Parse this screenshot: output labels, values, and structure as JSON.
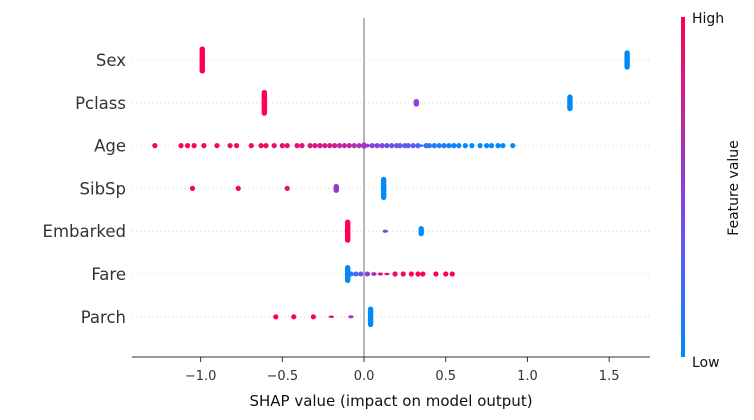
{
  "chart_data": {
    "type": "scatter",
    "subtype": "shap-beeswarm",
    "xlabel": "SHAP value (impact on model output)",
    "xlim": [
      -1.42,
      1.75
    ],
    "xticks": [
      -1.0,
      -0.5,
      0.0,
      0.5,
      1.0,
      1.5
    ],
    "xtick_labels": [
      "−1.0",
      "−0.5",
      "0.0",
      "0.5",
      "1.0",
      "1.5"
    ],
    "colorbar": {
      "high_label": "High",
      "low_label": "Low",
      "title": "Feature value",
      "high_color": "#ff0052",
      "low_color": "#008bfb"
    },
    "features": [
      {
        "name": "Sex",
        "points": [
          {
            "x": -0.99,
            "v": 1.0,
            "n": 40
          },
          {
            "x": 1.61,
            "v": 0.0,
            "n": 28
          }
        ]
      },
      {
        "name": "Pclass",
        "points": [
          {
            "x": -0.61,
            "v": 1.0,
            "n": 38
          },
          {
            "x": 0.32,
            "v": 0.5,
            "n": 10
          },
          {
            "x": 1.26,
            "v": 0.0,
            "n": 24
          }
        ]
      },
      {
        "name": "Age",
        "points": [
          {
            "x": -1.28,
            "v": 1.0,
            "n": 1
          },
          {
            "x": -1.12,
            "v": 0.98,
            "n": 1
          },
          {
            "x": -1.08,
            "v": 0.98,
            "n": 1
          },
          {
            "x": -1.04,
            "v": 0.97,
            "n": 1
          },
          {
            "x": -0.98,
            "v": 0.97,
            "n": 1
          },
          {
            "x": -0.9,
            "v": 0.96,
            "n": 1
          },
          {
            "x": -0.82,
            "v": 0.95,
            "n": 1
          },
          {
            "x": -0.78,
            "v": 0.95,
            "n": 1
          },
          {
            "x": -0.69,
            "v": 0.94,
            "n": 1
          },
          {
            "x": -0.63,
            "v": 0.93,
            "n": 1
          },
          {
            "x": -0.6,
            "v": 0.92,
            "n": 1
          },
          {
            "x": -0.55,
            "v": 0.91,
            "n": 1
          },
          {
            "x": -0.5,
            "v": 0.9,
            "n": 1
          },
          {
            "x": -0.47,
            "v": 0.88,
            "n": 1
          },
          {
            "x": -0.41,
            "v": 0.86,
            "n": 1
          },
          {
            "x": -0.38,
            "v": 0.85,
            "n": 1
          },
          {
            "x": -0.33,
            "v": 0.84,
            "n": 1
          },
          {
            "x": -0.3,
            "v": 0.82,
            "n": 1
          },
          {
            "x": -0.27,
            "v": 0.8,
            "n": 1
          },
          {
            "x": -0.24,
            "v": 0.79,
            "n": 1
          },
          {
            "x": -0.21,
            "v": 0.78,
            "n": 1
          },
          {
            "x": -0.18,
            "v": 0.76,
            "n": 1
          },
          {
            "x": -0.15,
            "v": 0.74,
            "n": 1
          },
          {
            "x": -0.12,
            "v": 0.7,
            "n": 1
          },
          {
            "x": -0.09,
            "v": 0.68,
            "n": 1
          },
          {
            "x": -0.06,
            "v": 0.65,
            "n": 1
          },
          {
            "x": -0.03,
            "v": 0.62,
            "n": 1
          },
          {
            "x": 0.0,
            "v": 0.6,
            "n": 8
          },
          {
            "x": 0.02,
            "v": 0.55,
            "n": 4
          },
          {
            "x": 0.05,
            "v": 0.52,
            "n": 1
          },
          {
            "x": 0.08,
            "v": 0.48,
            "n": 1
          },
          {
            "x": 0.11,
            "v": 0.45,
            "n": 1
          },
          {
            "x": 0.14,
            "v": 0.42,
            "n": 1
          },
          {
            "x": 0.17,
            "v": 0.4,
            "n": 1
          },
          {
            "x": 0.2,
            "v": 0.38,
            "n": 1
          },
          {
            "x": 0.22,
            "v": 0.35,
            "n": 1
          },
          {
            "x": 0.25,
            "v": 0.32,
            "n": 1
          },
          {
            "x": 0.27,
            "v": 0.3,
            "n": 1
          },
          {
            "x": 0.3,
            "v": 0.28,
            "n": 1
          },
          {
            "x": 0.33,
            "v": 0.25,
            "n": 1
          },
          {
            "x": 0.35,
            "v": 0.22,
            "n": 2
          },
          {
            "x": 0.38,
            "v": 0.18,
            "n": 1
          },
          {
            "x": 0.4,
            "v": 0.15,
            "n": 1
          },
          {
            "x": 0.43,
            "v": 0.12,
            "n": 1
          },
          {
            "x": 0.46,
            "v": 0.1,
            "n": 1
          },
          {
            "x": 0.49,
            "v": 0.08,
            "n": 1
          },
          {
            "x": 0.52,
            "v": 0.06,
            "n": 1
          },
          {
            "x": 0.55,
            "v": 0.05,
            "n": 1
          },
          {
            "x": 0.58,
            "v": 0.04,
            "n": 1
          },
          {
            "x": 0.62,
            "v": 0.03,
            "n": 1
          },
          {
            "x": 0.66,
            "v": 0.02,
            "n": 1
          },
          {
            "x": 0.71,
            "v": 0.02,
            "n": 1
          },
          {
            "x": 0.75,
            "v": 0.01,
            "n": 1
          },
          {
            "x": 0.78,
            "v": 0.01,
            "n": 1
          },
          {
            "x": 0.82,
            "v": 0.0,
            "n": 1
          },
          {
            "x": 0.85,
            "v": 0.0,
            "n": 1
          },
          {
            "x": 0.91,
            "v": 0.0,
            "n": 1
          }
        ]
      },
      {
        "name": "SibSp",
        "points": [
          {
            "x": -1.05,
            "v": 1.0,
            "n": 1
          },
          {
            "x": -0.77,
            "v": 0.95,
            "n": 1
          },
          {
            "x": -0.47,
            "v": 0.88,
            "n": 1
          },
          {
            "x": -0.17,
            "v": 0.55,
            "n": 12
          },
          {
            "x": 0.12,
            "v": 0.0,
            "n": 34
          }
        ]
      },
      {
        "name": "Embarked",
        "points": [
          {
            "x": -0.1,
            "v": 1.0,
            "n": 34
          },
          {
            "x": 0.13,
            "v": 0.5,
            "n": 3
          },
          {
            "x": 0.35,
            "v": 0.0,
            "n": 14
          }
        ]
      },
      {
        "name": "Fare",
        "points": [
          {
            "x": -0.1,
            "v": 0.0,
            "n": 26
          },
          {
            "x": -0.08,
            "v": 0.1,
            "n": 6
          },
          {
            "x": -0.05,
            "v": 0.2,
            "n": 6
          },
          {
            "x": -0.02,
            "v": 0.35,
            "n": 6
          },
          {
            "x": 0.02,
            "v": 0.5,
            "n": 6
          },
          {
            "x": 0.06,
            "v": 0.65,
            "n": 4
          },
          {
            "x": 0.1,
            "v": 0.8,
            "n": 3
          },
          {
            "x": 0.14,
            "v": 0.88,
            "n": 2
          },
          {
            "x": 0.19,
            "v": 0.92,
            "n": 1
          },
          {
            "x": 0.24,
            "v": 0.95,
            "n": 1
          },
          {
            "x": 0.29,
            "v": 0.97,
            "n": 1
          },
          {
            "x": 0.33,
            "v": 0.98,
            "n": 1
          },
          {
            "x": 0.36,
            "v": 0.98,
            "n": 1
          },
          {
            "x": 0.44,
            "v": 1.0,
            "n": 1
          },
          {
            "x": 0.5,
            "v": 1.0,
            "n": 1
          },
          {
            "x": 0.54,
            "v": 1.0,
            "n": 1
          }
        ]
      },
      {
        "name": "Parch",
        "points": [
          {
            "x": -0.54,
            "v": 1.0,
            "n": 1
          },
          {
            "x": -0.43,
            "v": 0.97,
            "n": 1
          },
          {
            "x": -0.31,
            "v": 0.94,
            "n": 1
          },
          {
            "x": -0.2,
            "v": 0.92,
            "n": 2
          },
          {
            "x": -0.08,
            "v": 0.6,
            "n": 3
          },
          {
            "x": 0.04,
            "v": 0.0,
            "n": 30
          }
        ]
      }
    ]
  }
}
